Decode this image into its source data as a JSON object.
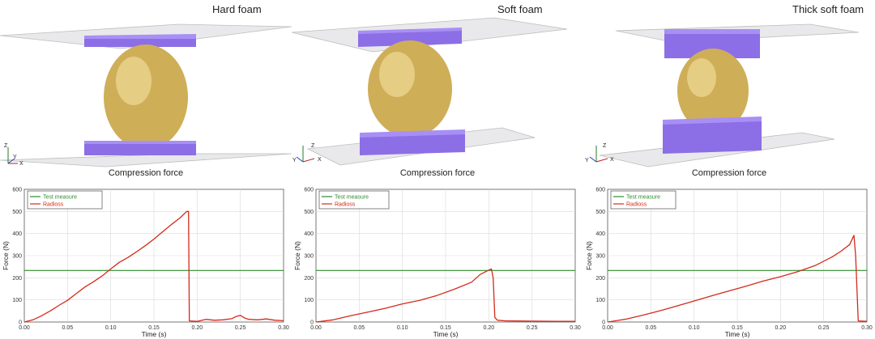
{
  "panels": [
    {
      "title": "Hard foam",
      "chart_title": "Compression force",
      "triad": {
        "z": "Z",
        "y": "Y",
        "x": "X"
      }
    },
    {
      "title": "Soft foam",
      "chart_title": "Compression force",
      "triad": {
        "z": "Z",
        "y": "Y",
        "x": "X"
      }
    },
    {
      "title": "Thick soft foam",
      "chart_title": "Compression force",
      "triad": {
        "z": "Z",
        "y": "Y",
        "x": "X"
      }
    }
  ],
  "colors": {
    "platen": "#9b7cf0",
    "egg": "#d4b461",
    "test_measure": "#2e8b2e",
    "radioss": "#d42a1a",
    "grid": "#d9d9d9"
  },
  "chart_data": [
    {
      "type": "line",
      "title": "Compression force",
      "xlabel": "Time (s)",
      "ylabel": "Force (N)",
      "xlim": [
        0,
        0.3
      ],
      "ylim": [
        0,
        600
      ],
      "xticks": [
        "0.00",
        "0.05",
        "0.10",
        "0.15",
        "0.20",
        "0.25",
        "0.30"
      ],
      "yticks": [
        "0",
        "100",
        "200",
        "300",
        "400",
        "500",
        "600"
      ],
      "grid": true,
      "legend_position": "top-left",
      "series": [
        {
          "name": "Test measure",
          "color": "#2e8b2e",
          "x": [
            0,
            0.3
          ],
          "y": [
            233,
            233
          ]
        },
        {
          "name": "Radioss",
          "color": "#d42a1a",
          "x": [
            0,
            0.01,
            0.02,
            0.03,
            0.04,
            0.05,
            0.06,
            0.07,
            0.08,
            0.09,
            0.1,
            0.11,
            0.12,
            0.13,
            0.14,
            0.15,
            0.16,
            0.17,
            0.18,
            0.188,
            0.19,
            0.191,
            0.2,
            0.21,
            0.22,
            0.23,
            0.24,
            0.245,
            0.25,
            0.255,
            0.26,
            0.27,
            0.28,
            0.29,
            0.3
          ],
          "y": [
            0,
            10,
            28,
            50,
            75,
            98,
            128,
            158,
            182,
            208,
            240,
            270,
            292,
            318,
            345,
            375,
            408,
            440,
            470,
            500,
            500,
            5,
            3,
            12,
            8,
            10,
            15,
            25,
            30,
            18,
            12,
            10,
            14,
            8,
            6
          ]
        }
      ]
    },
    {
      "type": "line",
      "title": "Compression force",
      "xlabel": "Time (s)",
      "ylabel": "Force (N)",
      "xlim": [
        0,
        0.3
      ],
      "ylim": [
        0,
        600
      ],
      "xticks": [
        "0.00",
        "0.05",
        "0.10",
        "0.15",
        "0.20",
        "0.25",
        "0.30"
      ],
      "yticks": [
        "0",
        "100",
        "200",
        "300",
        "400",
        "500",
        "600"
      ],
      "grid": true,
      "legend_position": "top-left",
      "series": [
        {
          "name": "Test measure",
          "color": "#2e8b2e",
          "x": [
            0,
            0.3
          ],
          "y": [
            233,
            233
          ]
        },
        {
          "name": "Radioss",
          "color": "#d42a1a",
          "x": [
            0,
            0.02,
            0.04,
            0.06,
            0.08,
            0.1,
            0.12,
            0.14,
            0.16,
            0.18,
            0.19,
            0.2,
            0.203,
            0.205,
            0.207,
            0.21,
            0.22,
            0.25,
            0.28,
            0.3
          ],
          "y": [
            0,
            10,
            28,
            45,
            62,
            82,
            98,
            120,
            148,
            180,
            215,
            235,
            240,
            200,
            20,
            8,
            5,
            4,
            3,
            3
          ]
        }
      ]
    },
    {
      "type": "line",
      "title": "Compression force",
      "xlabel": "Time (s)",
      "ylabel": "Force (N)",
      "xlim": [
        0,
        0.3
      ],
      "ylim": [
        0,
        600
      ],
      "xticks": [
        "0.00",
        "0.05",
        "0.10",
        "0.15",
        "0.20",
        "0.25",
        "0.30"
      ],
      "yticks": [
        "0",
        "100",
        "200",
        "300",
        "400",
        "500",
        "600"
      ],
      "grid": true,
      "legend_position": "top-left",
      "series": [
        {
          "name": "Test measure",
          "color": "#2e8b2e",
          "x": [
            0,
            0.3
          ],
          "y": [
            233,
            233
          ]
        },
        {
          "name": "Radioss",
          "color": "#d42a1a",
          "x": [
            0,
            0.02,
            0.04,
            0.06,
            0.08,
            0.1,
            0.12,
            0.14,
            0.16,
            0.18,
            0.2,
            0.22,
            0.24,
            0.26,
            0.27,
            0.28,
            0.285,
            0.287,
            0.29,
            0.3
          ],
          "y": [
            0,
            12,
            30,
            50,
            72,
            95,
            118,
            140,
            162,
            185,
            205,
            228,
            255,
            295,
            320,
            350,
            392,
            300,
            5,
            3
          ]
        }
      ]
    }
  ]
}
